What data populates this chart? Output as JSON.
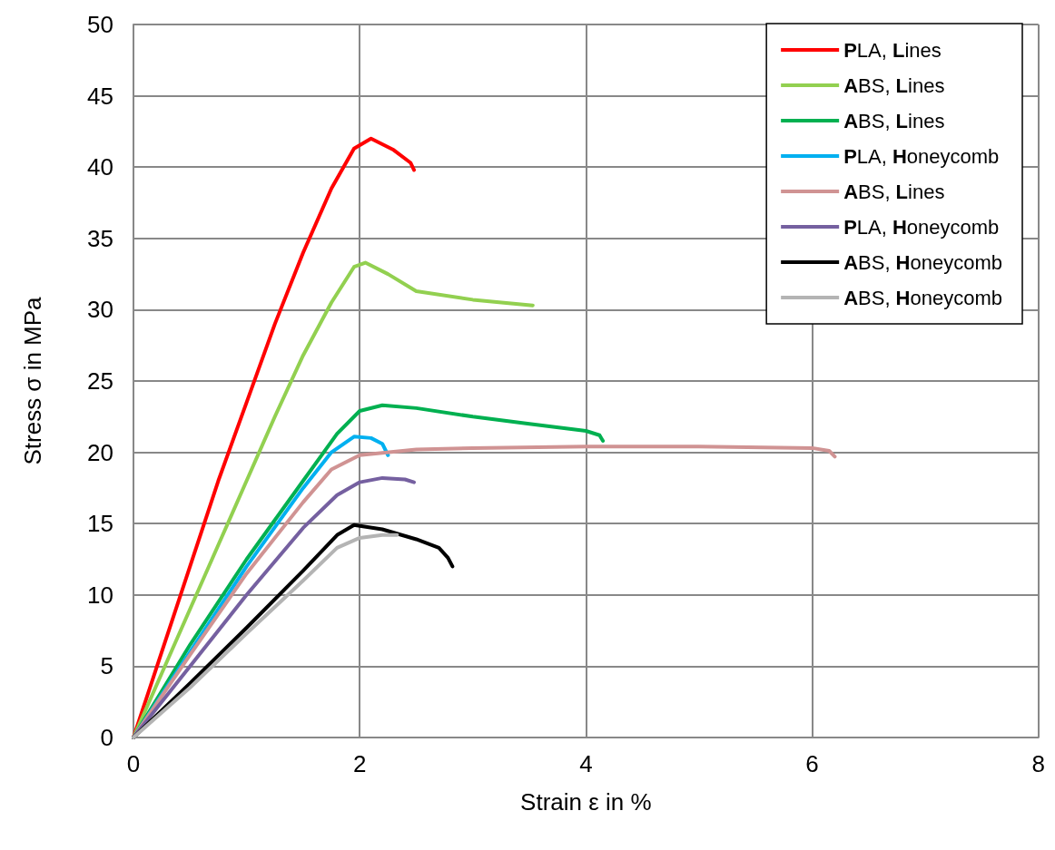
{
  "chart_data": {
    "type": "line",
    "xlabel": "Strain ε in %",
    "ylabel": "Stress σ in MPa",
    "xlim": [
      0,
      8
    ],
    "xticks": [
      0,
      2,
      4,
      6,
      8
    ],
    "ylim": [
      0,
      50
    ],
    "yticks": [
      0,
      5,
      10,
      15,
      20,
      25,
      30,
      35,
      40,
      45,
      50
    ],
    "grid": true,
    "legend": "top right",
    "marker": "none",
    "line_style": "solid",
    "series": [
      {
        "name": "PLA, Lines",
        "color": "#ff0000",
        "x": [
          0,
          0.25,
          0.5,
          0.75,
          1,
          1.25,
          1.5,
          1.75,
          1.95,
          2.1,
          2.3,
          2.45,
          2.48
        ],
        "values": [
          0,
          6,
          12,
          18,
          23.5,
          29,
          34,
          38.5,
          41.3,
          42,
          41.2,
          40.3,
          39.8
        ]
      },
      {
        "name": "ABS, Lines",
        "color": "#92d050",
        "x": [
          0,
          0.25,
          0.5,
          0.75,
          1,
          1.25,
          1.5,
          1.75,
          1.95,
          2.05,
          2.25,
          2.5,
          3,
          3.53
        ],
        "values": [
          0,
          4.5,
          9,
          13.5,
          18,
          22.5,
          26.8,
          30.5,
          33,
          33.3,
          32.5,
          31.3,
          30.7,
          30.3
        ]
      },
      {
        "name": "ABS, Lines",
        "color": "#00b050",
        "x": [
          0,
          0.5,
          1,
          1.5,
          1.8,
          2,
          2.2,
          2.5,
          3,
          3.5,
          4,
          4.12,
          4.15
        ],
        "values": [
          0,
          6.5,
          12.5,
          18,
          21.3,
          22.9,
          23.3,
          23.1,
          22.5,
          22,
          21.5,
          21.2,
          20.8
        ]
      },
      {
        "name": "PLA, Honeycomb",
        "color": "#00b0f0",
        "x": [
          0,
          0.5,
          1,
          1.5,
          1.75,
          1.95,
          2.1,
          2.2,
          2.25
        ],
        "values": [
          0,
          6,
          12,
          17.5,
          20,
          21.1,
          21,
          20.6,
          19.8
        ]
      },
      {
        "name": "ABS, Lines",
        "color": "#d09393",
        "x": [
          0,
          0.5,
          1,
          1.5,
          1.75,
          2,
          2.5,
          3,
          4,
          5,
          6,
          6.15,
          6.2
        ],
        "values": [
          0,
          5.8,
          11.5,
          16.5,
          18.8,
          19.8,
          20.2,
          20.3,
          20.4,
          20.4,
          20.3,
          20.1,
          19.7
        ]
      },
      {
        "name": "PLA, Honeycomb",
        "color": "#7560a0",
        "x": [
          0,
          0.5,
          1,
          1.5,
          1.8,
          2,
          2.2,
          2.4,
          2.48
        ],
        "values": [
          0,
          5,
          10,
          14.7,
          17,
          17.9,
          18.2,
          18.1,
          17.9
        ]
      },
      {
        "name": "ABS, Honeycomb",
        "color": "#000000",
        "x": [
          0,
          0.5,
          1,
          1.5,
          1.8,
          1.95,
          2.2,
          2.5,
          2.7,
          2.78,
          2.82
        ],
        "values": [
          0,
          3.8,
          7.7,
          11.7,
          14.2,
          14.9,
          14.6,
          13.9,
          13.3,
          12.6,
          12
        ]
      },
      {
        "name": "ABS, Honeycomb",
        "color": "#b4b4b4",
        "x": [
          0,
          0.5,
          1,
          1.5,
          1.8,
          2,
          2.2,
          2.33
        ],
        "values": [
          0,
          3.5,
          7.3,
          11,
          13.3,
          14,
          14.2,
          14.2
        ]
      }
    ]
  }
}
